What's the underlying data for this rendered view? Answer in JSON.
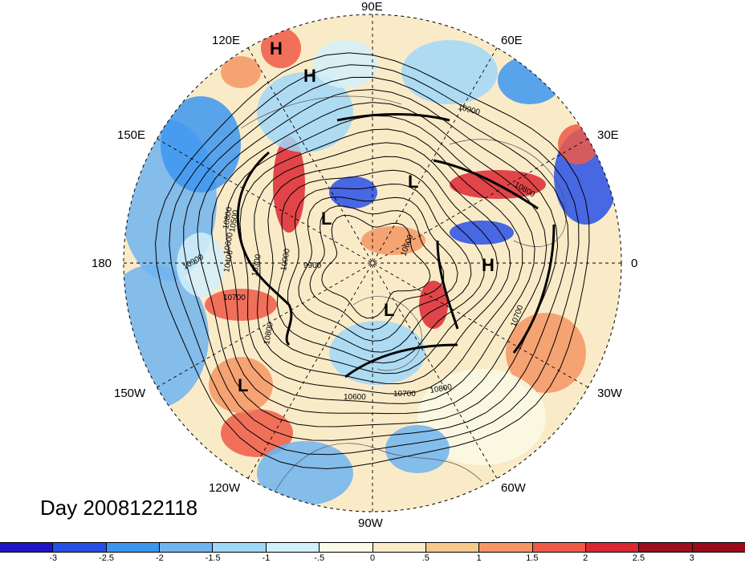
{
  "map": {
    "longitude_labels": [
      "90E",
      "60E",
      "30E",
      "0",
      "30W",
      "60W",
      "90W",
      "120W",
      "150W",
      "180",
      "150E",
      "120E"
    ],
    "pressure_centers": [
      {
        "type": "H"
      },
      {
        "type": "H"
      },
      {
        "type": "L"
      },
      {
        "type": "L"
      },
      {
        "type": "L"
      },
      {
        "type": "H"
      },
      {
        "type": "L"
      }
    ],
    "contour_labels": [
      "10900",
      "10800",
      "10700",
      "10600",
      "10500",
      "10400",
      "9900",
      "10000",
      "10300",
      "10800",
      "10900",
      "10700",
      "10800",
      "10600",
      "10700",
      "10800",
      "10600"
    ],
    "colors": {
      "land_background": "#f0e0b8",
      "contour": "#000000",
      "grid": "#000000"
    }
  },
  "title": {
    "day_label": "Day 2008122118"
  },
  "colorbar": {
    "tick_labels": [
      "-3",
      "-2.5",
      "-2",
      "-1.5",
      "-1",
      "-.5",
      "0",
      ".5",
      "1",
      "1.5",
      "2",
      "2.5",
      "3"
    ],
    "colors": [
      "#1e14c8",
      "#2850e6",
      "#3c96f0",
      "#6eb4f0",
      "#a0d8f8",
      "#d2f0fa",
      "#fafae6",
      "#faebc8",
      "#f5c88c",
      "#f59664",
      "#ee5a46",
      "#dc2832",
      "#a00f1e",
      "#9b0a19"
    ]
  }
}
